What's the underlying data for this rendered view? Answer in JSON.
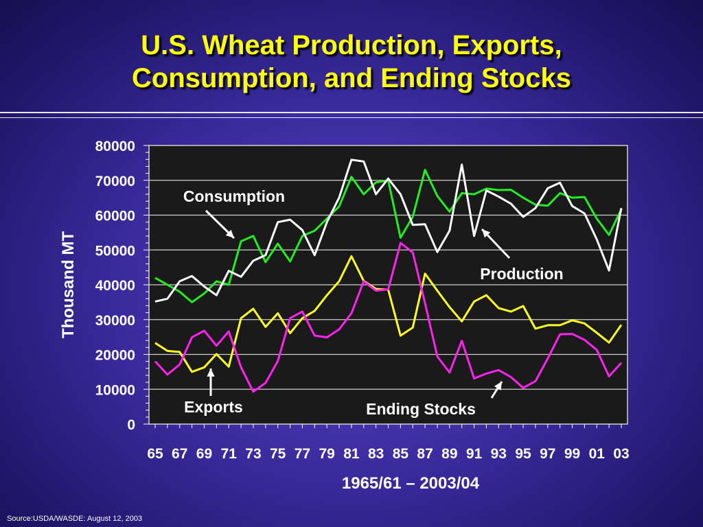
{
  "slide": {
    "title_line1": "U.S. Wheat Production, Exports,",
    "title_line2": "Consumption, and Ending Stocks",
    "source": "Source:USDA/WASDE: August 12, 2003"
  },
  "colors": {
    "background": "#3a2a9c",
    "title": "#ffff00",
    "plot_area": "#1a1a1a",
    "gridline": "#cfcfcf",
    "consumption": "#22ee22",
    "production": "#ffffff",
    "exports": "#ffff22",
    "ending_stocks": "#ff22ee"
  },
  "chart_data": {
    "type": "line",
    "title": "U.S. Wheat Production, Exports, Consumption, and Ending Stocks",
    "xlabel": "1965/61 – 2003/04",
    "ylabel": "Thousand MT",
    "ylim": [
      0,
      80000
    ],
    "yticks": [
      0,
      10000,
      20000,
      30000,
      40000,
      50000,
      60000,
      70000,
      80000
    ],
    "xticks": [
      "65",
      "67",
      "69",
      "71",
      "73",
      "75",
      "77",
      "79",
      "81",
      "83",
      "85",
      "87",
      "89",
      "91",
      "93",
      "95",
      "97",
      "99",
      "01",
      "03"
    ],
    "grid": true,
    "legend": "inline labels with arrows",
    "categories": [
      "65",
      "66",
      "67",
      "68",
      "69",
      "70",
      "71",
      "72",
      "73",
      "74",
      "75",
      "76",
      "77",
      "78",
      "79",
      "80",
      "81",
      "82",
      "83",
      "84",
      "85",
      "86",
      "87",
      "88",
      "89",
      "90",
      "91",
      "92",
      "93",
      "94",
      "95",
      "96",
      "97",
      "98",
      "99",
      "00",
      "01",
      "02",
      "03"
    ],
    "series": [
      {
        "name": "Consumption",
        "color": "#22ee22",
        "values": [
          42000,
          40000,
          38000,
          35000,
          37500,
          41000,
          40000,
          52500,
          54000,
          46500,
          51800,
          46700,
          54000,
          55500,
          59000,
          62500,
          71000,
          66000,
          69400,
          70000,
          53500,
          59500,
          73000,
          65500,
          61000,
          66300,
          66000,
          67600,
          67200,
          67300,
          65000,
          63000,
          62700,
          66300,
          65000,
          65200,
          59000,
          54300,
          61700
        ]
      },
      {
        "name": "Production",
        "color": "#ffffff",
        "values": [
          35200,
          36000,
          41000,
          42500,
          39500,
          37000,
          44000,
          42300,
          46900,
          48500,
          58000,
          58700,
          55700,
          48500,
          58000,
          65000,
          75900,
          75400,
          66000,
          70500,
          66000,
          57200,
          57400,
          49400,
          55500,
          74500,
          54000,
          67100,
          65300,
          63300,
          59500,
          62000,
          67700,
          69300,
          62600,
          60500,
          53000,
          44100,
          62000
        ]
      },
      {
        "name": "Exports",
        "color": "#ffff22",
        "values": [
          23300,
          21000,
          20700,
          15000,
          16300,
          20100,
          16500,
          30400,
          33100,
          27900,
          31800,
          26100,
          30400,
          32500,
          37000,
          41000,
          48200,
          41100,
          38800,
          38600,
          25400,
          27700,
          43200,
          38300,
          33600,
          29500,
          35200,
          37000,
          33300,
          32300,
          33900,
          27400,
          28400,
          28400,
          29800,
          28900,
          26200,
          23400,
          28500
        ]
      },
      {
        "name": "Ending Stocks",
        "color": "#ff22ee",
        "values": [
          18000,
          14200,
          17100,
          24900,
          26800,
          22500,
          26600,
          16300,
          9300,
          11800,
          18100,
          30400,
          32300,
          25400,
          24900,
          27200,
          31800,
          41000,
          38300,
          38700,
          52000,
          49300,
          34700,
          19400,
          14800,
          23900,
          13100,
          14500,
          15500,
          13500,
          10400,
          12300,
          18800,
          25800,
          25900,
          24200,
          21300,
          13700,
          17600
        ]
      }
    ],
    "annotations": [
      {
        "text": "Consumption",
        "series": "Consumption"
      },
      {
        "text": "Production",
        "series": "Production"
      },
      {
        "text": "Exports",
        "series": "Exports"
      },
      {
        "text": "Ending Stocks",
        "series": "Ending Stocks"
      }
    ]
  }
}
